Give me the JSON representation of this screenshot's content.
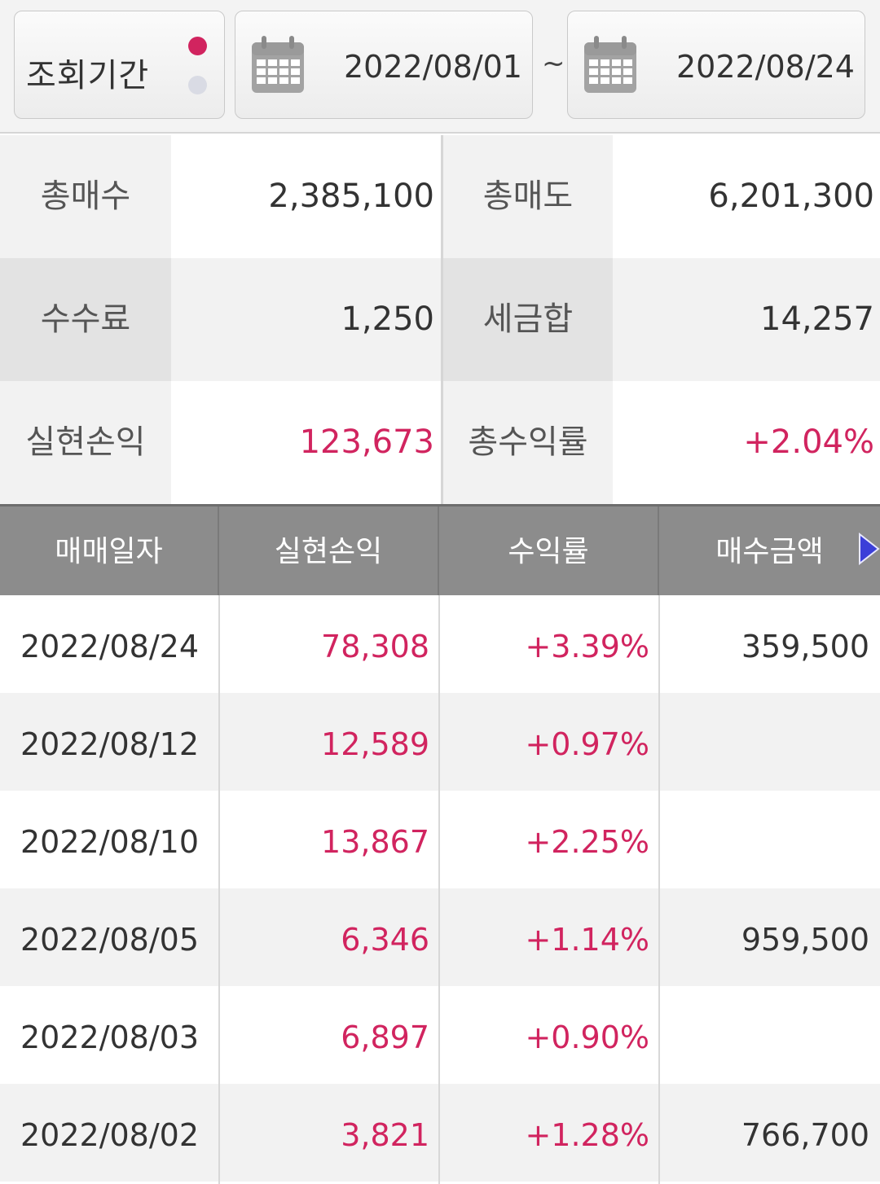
{
  "period": {
    "label": "조회기간",
    "start_date": "2022/08/01",
    "separator": "~",
    "end_date": "2022/08/24"
  },
  "summary": [
    {
      "label_left": "총매수",
      "value_left": "2,385,100",
      "label_right": "총매도",
      "value_right": "6,201,300"
    },
    {
      "label_left": "수수료",
      "value_left": "1,250",
      "label_right": "세금합",
      "value_right": "14,257"
    },
    {
      "label_left": "실현손익",
      "value_left": "123,673",
      "label_right": "총수익률",
      "value_right": "+2.04%"
    }
  ],
  "table": {
    "headers": [
      "매매일자",
      "실현손익",
      "수익률",
      "매수금액"
    ],
    "rows": [
      {
        "date": "2022/08/24",
        "pl": "78,308",
        "rate": "+3.39%",
        "buy": "359,500"
      },
      {
        "date": "2022/08/12",
        "pl": "12,589",
        "rate": "+0.97%",
        "buy": ""
      },
      {
        "date": "2022/08/10",
        "pl": "13,867",
        "rate": "+2.25%",
        "buy": ""
      },
      {
        "date": "2022/08/05",
        "pl": "6,346",
        "rate": "+1.14%",
        "buy": "959,500"
      },
      {
        "date": "2022/08/03",
        "pl": "6,897",
        "rate": "+0.90%",
        "buy": ""
      },
      {
        "date": "2022/08/02",
        "pl": "3,821",
        "rate": "+1.28%",
        "buy": "766,700"
      }
    ]
  },
  "icons": {
    "calendar": "calendar-icon",
    "scroll_right": "arrow-right-icon"
  },
  "colors": {
    "profit": "#d1245f",
    "header_bg": "#8c8c8c",
    "toggle_active": "#d1245f",
    "toggle_inactive": "#d9dbe4",
    "arrow": "#3b3fd8"
  }
}
